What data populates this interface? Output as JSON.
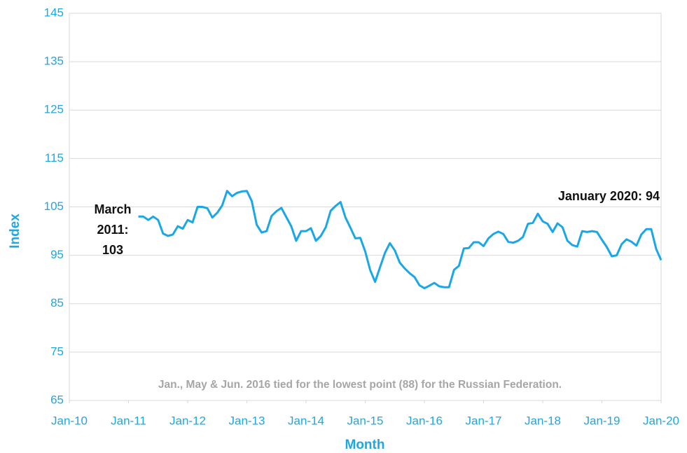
{
  "chart_data": {
    "type": "line",
    "x_label": "Month",
    "y_label": "Index",
    "color": "#1aa7e8",
    "x": [
      "2011-03",
      "2011-04",
      "2011-05",
      "2011-06",
      "2011-07",
      "2011-08",
      "2011-09",
      "2011-10",
      "2011-11",
      "2011-12",
      "2012-01",
      "2012-02",
      "2012-03",
      "2012-04",
      "2012-05",
      "2012-06",
      "2012-07",
      "2012-08",
      "2012-09",
      "2012-10",
      "2012-11",
      "2012-12",
      "2013-01",
      "2013-02",
      "2013-03",
      "2013-04",
      "2013-05",
      "2013-06",
      "2013-07",
      "2013-08",
      "2013-09",
      "2013-10",
      "2013-11",
      "2013-12",
      "2014-01",
      "2014-02",
      "2014-03",
      "2014-04",
      "2014-05",
      "2014-06",
      "2014-07",
      "2014-08",
      "2014-09",
      "2014-10",
      "2014-11",
      "2014-12",
      "2015-01",
      "2015-02",
      "2015-03",
      "2015-04",
      "2015-05",
      "2015-06",
      "2015-07",
      "2015-08",
      "2015-09",
      "2015-10",
      "2015-11",
      "2015-12",
      "2016-01",
      "2016-02",
      "2016-03",
      "2016-04",
      "2016-05",
      "2016-06",
      "2016-07",
      "2016-08",
      "2016-09",
      "2016-10",
      "2016-11",
      "2016-12",
      "2017-01",
      "2017-02",
      "2017-03",
      "2017-04",
      "2017-05",
      "2017-06",
      "2017-07",
      "2017-08",
      "2017-09",
      "2017-10",
      "2017-11",
      "2017-12",
      "2018-01",
      "2018-02",
      "2018-03",
      "2018-04",
      "2018-05",
      "2018-06",
      "2018-07",
      "2018-08",
      "2018-09",
      "2018-10",
      "2018-11",
      "2018-12",
      "2019-01",
      "2019-02",
      "2019-03",
      "2019-04",
      "2019-05",
      "2019-06",
      "2019-07",
      "2019-08",
      "2019-09",
      "2019-10",
      "2019-11",
      "2019-12",
      "2020-01"
    ],
    "values": [
      103,
      103,
      102.3,
      103,
      102.3,
      99.5,
      99,
      99.3,
      101,
      100.5,
      102.3,
      101.8,
      105,
      105,
      104.7,
      102.8,
      103.8,
      105.3,
      108.3,
      107.2,
      107.9,
      108.2,
      108.3,
      106.2,
      101.3,
      99.7,
      100,
      103.1,
      104.1,
      104.8,
      102.9,
      101,
      98,
      100,
      100,
      100.6,
      98,
      99,
      100.8,
      104.2,
      105.2,
      106,
      102.8,
      100.7,
      98.5,
      98.6,
      95.8,
      92,
      89.5,
      92.5,
      95.5,
      97.5,
      96,
      93.5,
      92.3,
      91.3,
      90.5,
      88.8,
      88.2,
      88.7,
      89.3,
      88.6,
      88.4,
      88.4,
      92,
      92.8,
      96.4,
      96.5,
      97.7,
      97.7,
      96.9,
      98.5,
      99.4,
      99.9,
      99.4,
      97.8,
      97.6,
      98,
      98.8,
      101.5,
      101.7,
      103.6,
      102,
      101.5,
      99.8,
      101.6,
      100.8,
      98,
      97.1,
      96.8,
      100,
      99.8,
      100,
      99.8,
      98.2,
      96.7,
      94.8,
      95,
      97.3,
      98.3,
      97.8,
      97,
      99.3,
      100.4,
      100.4,
      96.3,
      94
    ],
    "xlim": [
      "2010-01",
      "2020-01"
    ],
    "xticks": [
      {
        "value": "2010-01",
        "label": "Jan-10"
      },
      {
        "value": "2011-01",
        "label": "Jan-11"
      },
      {
        "value": "2012-01",
        "label": "Jan-12"
      },
      {
        "value": "2013-01",
        "label": "Jan-13"
      },
      {
        "value": "2014-01",
        "label": "Jan-14"
      },
      {
        "value": "2015-01",
        "label": "Jan-15"
      },
      {
        "value": "2016-01",
        "label": "Jan-16"
      },
      {
        "value": "2017-01",
        "label": "Jan-17"
      },
      {
        "value": "2018-01",
        "label": "Jan-18"
      },
      {
        "value": "2019-01",
        "label": "Jan-19"
      },
      {
        "value": "2020-01",
        "label": "Jan-20"
      }
    ],
    "ylim": [
      65,
      145
    ],
    "yticks": [
      65,
      75,
      85,
      95,
      105,
      115,
      125,
      135,
      145
    ],
    "grid": true,
    "annotations": [
      {
        "text": "March 2011: 103"
      },
      {
        "text": "January 2020: 94"
      }
    ],
    "note": "Jan., May & Jun. 2016 tied for the lowest point (88) for the Russian Federation."
  }
}
